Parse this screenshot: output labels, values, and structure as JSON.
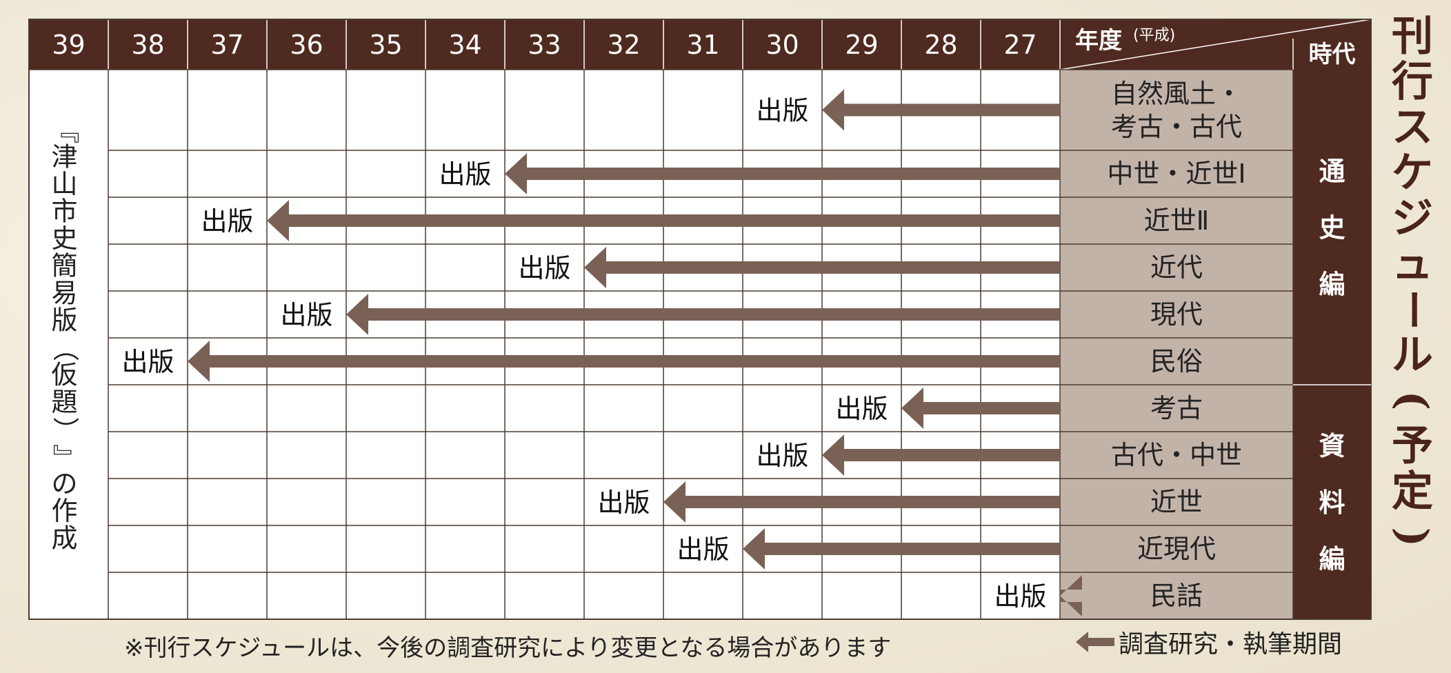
{
  "header": {
    "years": [
      "39",
      "38",
      "37",
      "36",
      "35",
      "34",
      "33",
      "32",
      "31",
      "30",
      "29",
      "28",
      "27"
    ],
    "year_label": "年度",
    "era_label": "(平成)",
    "period_label": "時代"
  },
  "side_text": "『津山市史簡易版（仮題）』の作成",
  "groups": [
    {
      "label": "通史編",
      "chars": [
        "通",
        "史",
        "編"
      ]
    },
    {
      "label": "資料編",
      "chars": [
        "資",
        "料",
        "編"
      ]
    }
  ],
  "rows": [
    {
      "topic": [
        "自然風土・",
        "考古・古代"
      ],
      "end_year": "30",
      "label": "出版",
      "group": 0
    },
    {
      "topic": [
        "中世・近世Ⅰ"
      ],
      "end_year": "34",
      "label": "出版",
      "group": 0
    },
    {
      "topic": [
        "近世Ⅱ"
      ],
      "end_year": "37",
      "label": "出版",
      "group": 0
    },
    {
      "topic": [
        "近代"
      ],
      "end_year": "33",
      "label": "出版",
      "group": 0
    },
    {
      "topic": [
        "現代"
      ],
      "end_year": "36",
      "label": "出版",
      "group": 0
    },
    {
      "topic": [
        "民俗"
      ],
      "end_year": "38",
      "label": "出版",
      "group": 0
    },
    {
      "topic": [
        "考古"
      ],
      "end_year": "29",
      "label": "出版",
      "group": 1
    },
    {
      "topic": [
        "古代・中世"
      ],
      "end_year": "30",
      "label": "出版",
      "group": 1
    },
    {
      "topic": [
        "近世"
      ],
      "end_year": "32",
      "label": "出版",
      "group": 1
    },
    {
      "topic": [
        "近現代"
      ],
      "end_year": "31",
      "label": "出版",
      "group": 1
    },
    {
      "topic": [
        "民話"
      ],
      "end_year": "27",
      "label": "出版",
      "group": 1
    }
  ],
  "title": "刊行スケジュール(予定)",
  "title_chars": [
    "刊",
    "行",
    "ス",
    "ケ",
    "ジ",
    "ュ",
    "ー",
    "ル",
    "(",
    "予",
    "定",
    ")"
  ],
  "footnote": "※刊行スケジュールは、今後の調査研究により変更となる場合があります",
  "legend": "調査研究・執筆期間",
  "colors": {
    "header_bg": "#4f2a20",
    "topic_bg": "#c2b3a9",
    "arrow": "#7a6155",
    "grid": "#4a3a30"
  }
}
